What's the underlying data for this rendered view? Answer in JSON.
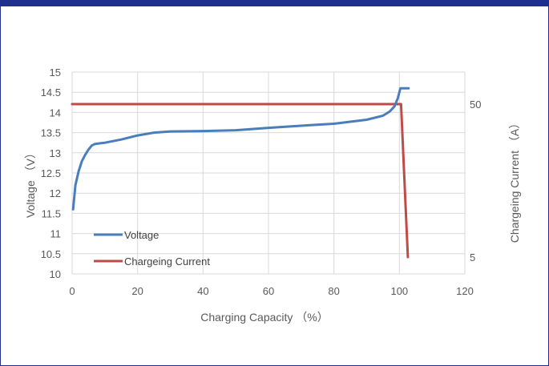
{
  "chart_data": {
    "type": "line",
    "xlabel": "Charging Capacity （%）",
    "ylabel": "Voltage （V）",
    "y2label": "Chargeing Current （A）",
    "xlim": [
      0,
      120
    ],
    "ylim": [
      10,
      15
    ],
    "x_ticks": [
      "0",
      "20",
      "40",
      "60",
      "80",
      "100",
      "120"
    ],
    "y_ticks": [
      "10",
      "10.5",
      "11",
      "11.5",
      "12",
      "12.5",
      "13",
      "13.5",
      "14",
      "14.5",
      "15"
    ],
    "y2_ticks": [
      "50",
      "5"
    ],
    "grid": true,
    "legend_position": "bottom-left-inside",
    "series": [
      {
        "name": "Voltage",
        "axis": "left",
        "color": "#4a7ebb",
        "points": [
          [
            0.3,
            11.6
          ],
          [
            1,
            12.2
          ],
          [
            2,
            12.55
          ],
          [
            3,
            12.8
          ],
          [
            4,
            12.95
          ],
          [
            5,
            13.08
          ],
          [
            6,
            13.18
          ],
          [
            7,
            13.22
          ],
          [
            10,
            13.25
          ],
          [
            15,
            13.33
          ],
          [
            20,
            13.43
          ],
          [
            25,
            13.5
          ],
          [
            30,
            13.53
          ],
          [
            40,
            13.54
          ],
          [
            50,
            13.56
          ],
          [
            60,
            13.62
          ],
          [
            70,
            13.67
          ],
          [
            80,
            13.72
          ],
          [
            90,
            13.82
          ],
          [
            95,
            13.92
          ],
          [
            97,
            14.02
          ],
          [
            98.5,
            14.15
          ],
          [
            99.5,
            14.35
          ],
          [
            100.3,
            14.6
          ],
          [
            102.8,
            14.6
          ]
        ]
      },
      {
        "name": "Chargeing Current",
        "axis": "right",
        "color": "#be4b48",
        "points": [
          [
            0,
            50
          ],
          [
            100.5,
            50
          ],
          [
            102.6,
            5
          ]
        ]
      }
    ]
  }
}
